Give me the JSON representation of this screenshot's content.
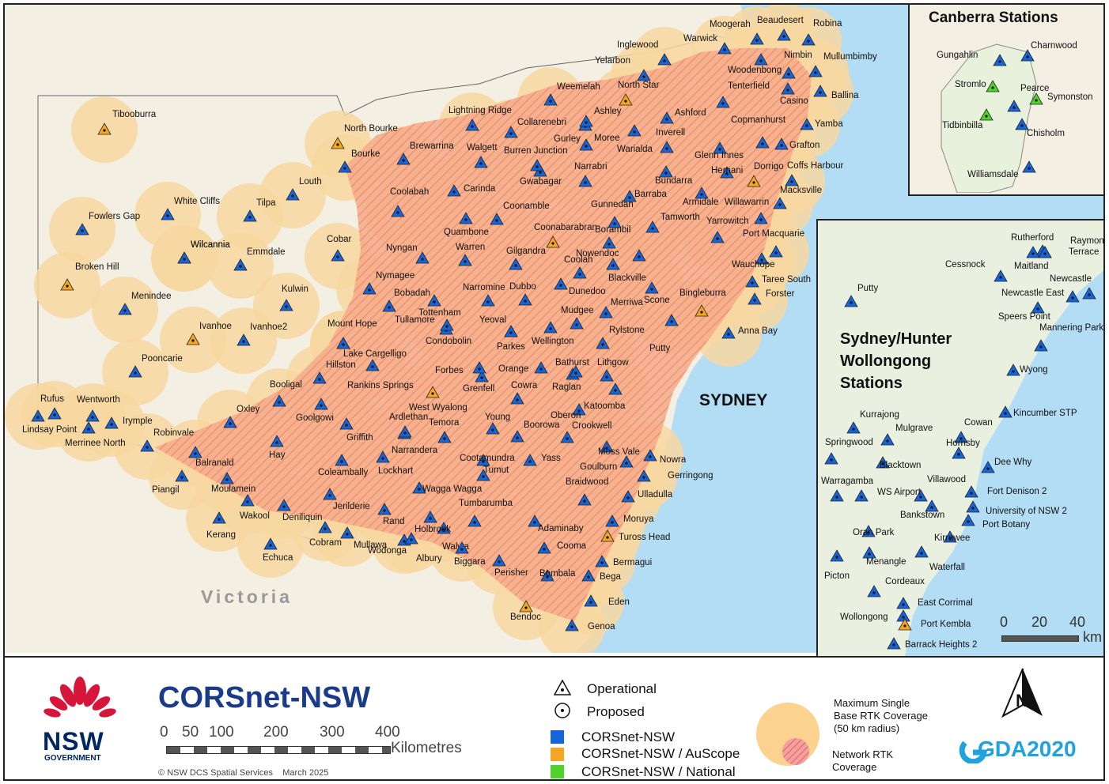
{
  "map": {
    "region_label": "Victoria",
    "city_label": "SYDNEY",
    "colors": {
      "sea": "#b3dcf5",
      "land": "#f7f3e6",
      "coverage_circle": "#f8d7a0",
      "network_rtk": "#f2a98c",
      "corsnet": "#1565d8",
      "auscope": "#f5a623",
      "national": "#4fd22a"
    },
    "stations": [
      {
        "name": "Tibooburra",
        "type": "auscope"
      },
      {
        "name": "North Bourke",
        "type": "auscope"
      },
      {
        "name": "Bourke",
        "type": "corsnet"
      },
      {
        "name": "White Cliffs",
        "type": "corsnet"
      },
      {
        "name": "Tilpa",
        "type": "corsnet"
      },
      {
        "name": "Louth",
        "type": "corsnet"
      },
      {
        "name": "Fowlers Gap",
        "type": "corsnet"
      },
      {
        "name": "Wilcannia",
        "type": "corsnet"
      },
      {
        "name": "Emmdale",
        "type": "corsnet"
      },
      {
        "name": "Cobar",
        "type": "corsnet"
      },
      {
        "name": "Broken Hill",
        "type": "auscope"
      },
      {
        "name": "Menindee",
        "type": "corsnet"
      },
      {
        "name": "Kulwin",
        "type": "corsnet"
      },
      {
        "name": "Ivanhoe",
        "type": "auscope"
      },
      {
        "name": "Ivanhoe2",
        "type": "corsnet"
      },
      {
        "name": "Pooncarie",
        "type": "corsnet"
      },
      {
        "name": "Rufus",
        "type": "corsnet"
      },
      {
        "name": "Wentworth",
        "type": "corsnet"
      },
      {
        "name": "Lindsay Point",
        "type": "corsnet"
      },
      {
        "name": "Irymple",
        "type": "corsnet"
      },
      {
        "name": "Merrinee North",
        "type": "corsnet"
      },
      {
        "name": "Robinvale",
        "type": "corsnet"
      },
      {
        "name": "Balranald",
        "type": "corsnet"
      },
      {
        "name": "Oxley",
        "type": "corsnet"
      },
      {
        "name": "Piangil",
        "type": "corsnet"
      },
      {
        "name": "Moulamein",
        "type": "corsnet"
      },
      {
        "name": "Kerang",
        "type": "corsnet"
      },
      {
        "name": "Wakool",
        "type": "corsnet"
      },
      {
        "name": "Deniliquin",
        "type": "corsnet"
      },
      {
        "name": "Echuca",
        "type": "corsnet"
      },
      {
        "name": "Cobram",
        "type": "corsnet"
      },
      {
        "name": "Mullawa",
        "type": "corsnet"
      },
      {
        "name": "Wodonga",
        "type": "corsnet"
      },
      {
        "name": "Albury",
        "type": "corsnet"
      },
      {
        "name": "Walwa",
        "type": "corsnet"
      },
      {
        "name": "Holbrook",
        "type": "corsnet"
      },
      {
        "name": "Jerilderie",
        "type": "corsnet"
      },
      {
        "name": "Rand",
        "type": "corsnet"
      },
      {
        "name": "Hay",
        "type": "corsnet"
      },
      {
        "name": "Booligal",
        "type": "corsnet"
      },
      {
        "name": "Hillston",
        "type": "corsnet"
      },
      {
        "name": "Goolgowi",
        "type": "corsnet"
      },
      {
        "name": "Griffith",
        "type": "corsnet"
      },
      {
        "name": "Coleambally",
        "type": "corsnet"
      },
      {
        "name": "Lockhart",
        "type": "corsnet"
      },
      {
        "name": "Narrandera",
        "type": "corsnet"
      },
      {
        "name": "Ardlethan",
        "type": "corsnet"
      },
      {
        "name": "Rankins Springs",
        "type": "corsnet"
      },
      {
        "name": "Lake Cargelligo",
        "type": "corsnet"
      },
      {
        "name": "Mount Hope",
        "type": "corsnet"
      },
      {
        "name": "Condobolin",
        "type": "corsnet"
      },
      {
        "name": "Nymagee",
        "type": "corsnet"
      },
      {
        "name": "Nyngan",
        "type": "corsnet"
      },
      {
        "name": "Bobadah",
        "type": "corsnet"
      },
      {
        "name": "Tottenham",
        "type": "corsnet"
      },
      {
        "name": "Tullamore",
        "type": "corsnet"
      },
      {
        "name": "West Wyalong",
        "type": "auscope"
      },
      {
        "name": "Temora",
        "type": "corsnet"
      },
      {
        "name": "Grenfell",
        "type": "corsnet"
      },
      {
        "name": "Young",
        "type": "corsnet"
      },
      {
        "name": "Forbes",
        "type": "corsnet"
      },
      {
        "name": "Parkes",
        "type": "corsnet"
      },
      {
        "name": "Yeoval",
        "type": "corsnet"
      },
      {
        "name": "Narromine",
        "type": "corsnet"
      },
      {
        "name": "Dubbo",
        "type": "corsnet"
      },
      {
        "name": "Warren",
        "type": "corsnet"
      },
      {
        "name": "Quambone",
        "type": "corsnet"
      },
      {
        "name": "Coonamble",
        "type": "corsnet"
      },
      {
        "name": "Coonabarabran",
        "type": "auscope"
      },
      {
        "name": "Gilgandra",
        "type": "corsnet"
      },
      {
        "name": "Coolah",
        "type": "corsnet"
      },
      {
        "name": "Dunedoo",
        "type": "corsnet"
      },
      {
        "name": "Mudgee",
        "type": "corsnet"
      },
      {
        "name": "Wellington",
        "type": "corsnet"
      },
      {
        "name": "Orange",
        "type": "corsnet"
      },
      {
        "name": "Bathurst",
        "type": "corsnet"
      },
      {
        "name": "Lithgow",
        "type": "corsnet"
      },
      {
        "name": "Cowra",
        "type": "corsnet"
      },
      {
        "name": "Raglan",
        "type": "corsnet"
      },
      {
        "name": "Oberon",
        "type": "corsnet"
      },
      {
        "name": "Boorowa",
        "type": "corsnet"
      },
      {
        "name": "Crookwell",
        "type": "corsnet"
      },
      {
        "name": "Katoomba",
        "type": "corsnet"
      },
      {
        "name": "Cootamundra",
        "type": "corsnet"
      },
      {
        "name": "Yass",
        "type": "corsnet"
      },
      {
        "name": "Wagga Wagga",
        "type": "corsnet"
      },
      {
        "name": "Tumut",
        "type": "corsnet"
      },
      {
        "name": "Tumbarumba",
        "type": "corsnet"
      },
      {
        "name": "Goulburn",
        "type": "corsnet"
      },
      {
        "name": "Moss Vale",
        "type": "corsnet"
      },
      {
        "name": "Braidwood",
        "type": "corsnet"
      },
      {
        "name": "Adaminaby",
        "type": "corsnet"
      },
      {
        "name": "Cooma",
        "type": "corsnet"
      },
      {
        "name": "Perisher",
        "type": "corsnet"
      },
      {
        "name": "Biggara",
        "type": "corsnet"
      },
      {
        "name": "Bombala",
        "type": "corsnet"
      },
      {
        "name": "Bendoc",
        "type": "auscope"
      },
      {
        "name": "Genoa",
        "type": "corsnet"
      },
      {
        "name": "Eden",
        "type": "corsnet"
      },
      {
        "name": "Bega",
        "type": "corsnet"
      },
      {
        "name": "Bermagui",
        "type": "corsnet"
      },
      {
        "name": "Tuross Head",
        "type": "auscope"
      },
      {
        "name": "Moruya",
        "type": "corsnet"
      },
      {
        "name": "Ulladulla",
        "type": "corsnet"
      },
      {
        "name": "Gerringong",
        "type": "corsnet"
      },
      {
        "name": "Nowra",
        "type": "corsnet"
      },
      {
        "name": "Wilcannia",
        "type": "corsnet"
      },
      {
        "name": "Merriwa",
        "type": "corsnet"
      },
      {
        "name": "Rylstone",
        "type": "corsnet"
      },
      {
        "name": "Scone",
        "type": "corsnet"
      },
      {
        "name": "Putty",
        "type": "corsnet"
      },
      {
        "name": "Bingleburra",
        "type": "auscope"
      },
      {
        "name": "Anna Bay",
        "type": "corsnet"
      },
      {
        "name": "Forster",
        "type": "corsnet"
      },
      {
        "name": "Taree South",
        "type": "corsnet"
      },
      {
        "name": "Wauchope",
        "type": "corsnet"
      },
      {
        "name": "Port Macquarie",
        "type": "corsnet"
      },
      {
        "name": "Nowendoc",
        "type": "corsnet"
      },
      {
        "name": "Borambil",
        "type": "corsnet"
      },
      {
        "name": "Blackville",
        "type": "corsnet"
      },
      {
        "name": "Gunnedah",
        "type": "corsnet"
      },
      {
        "name": "Tamworth",
        "type": "corsnet"
      },
      {
        "name": "Barraba",
        "type": "corsnet"
      },
      {
        "name": "Yarrowitch",
        "type": "corsnet"
      },
      {
        "name": "Armidale",
        "type": "corsnet"
      },
      {
        "name": "Willawarrin",
        "type": "corsnet"
      },
      {
        "name": "Macksville",
        "type": "corsnet"
      },
      {
        "name": "Coffs Harbour",
        "type": "corsnet"
      },
      {
        "name": "Dorrigo",
        "type": "auscope"
      },
      {
        "name": "Hernani",
        "type": "corsnet"
      },
      {
        "name": "Bundarra",
        "type": "corsnet"
      },
      {
        "name": "Narrabri",
        "type": "corsnet"
      },
      {
        "name": "Gwabagar",
        "type": "corsnet"
      },
      {
        "name": "Carinda",
        "type": "corsnet"
      },
      {
        "name": "Coolabah",
        "type": "corsnet"
      },
      {
        "name": "Brewarrina",
        "type": "corsnet"
      },
      {
        "name": "Walgett",
        "type": "corsnet"
      },
      {
        "name": "Burren Junction",
        "type": "corsnet"
      },
      {
        "name": "Lightning Ridge",
        "type": "corsnet"
      },
      {
        "name": "Collarenebri",
        "type": "corsnet"
      },
      {
        "name": "Weemelah",
        "type": "corsnet"
      },
      {
        "name": "Gurley",
        "type": "corsnet"
      },
      {
        "name": "Moree",
        "type": "corsnet"
      },
      {
        "name": "Ashley",
        "type": "corsnet"
      },
      {
        "name": "Warialda",
        "type": "corsnet"
      },
      {
        "name": "Inverell",
        "type": "corsnet"
      },
      {
        "name": "Ashford",
        "type": "corsnet"
      },
      {
        "name": "Glenn Innes",
        "type": "corsnet"
      },
      {
        "name": "Copmanhurst",
        "type": "corsnet"
      },
      {
        "name": "Grafton",
        "type": "corsnet"
      },
      {
        "name": "Yamba",
        "type": "corsnet"
      },
      {
        "name": "Casino",
        "type": "corsnet"
      },
      {
        "name": "Ballina",
        "type": "corsnet"
      },
      {
        "name": "Tenterfield",
        "type": "corsnet"
      },
      {
        "name": "Woodenbong",
        "type": "corsnet"
      },
      {
        "name": "Nimbin",
        "type": "corsnet"
      },
      {
        "name": "Mullumbimby",
        "type": "corsnet"
      },
      {
        "name": "Robina",
        "type": "corsnet"
      },
      {
        "name": "Beaudesert",
        "type": "corsnet"
      },
      {
        "name": "Moogerah",
        "type": "corsnet"
      },
      {
        "name": "Warwick",
        "type": "corsnet"
      },
      {
        "name": "Inglewood",
        "type": "corsnet"
      },
      {
        "name": "Yelarbon",
        "type": "corsnet"
      },
      {
        "name": "North Star",
        "type": "auscope"
      }
    ],
    "scale": {
      "ticks": [
        "0",
        "50",
        "100",
        "200",
        "300",
        "400"
      ],
      "unit": "Kilometres"
    }
  },
  "canberra_inset": {
    "title": "Canberra Stations",
    "stations": [
      {
        "name": "Gungahlin",
        "type": "corsnet"
      },
      {
        "name": "Charnwood",
        "type": "corsnet"
      },
      {
        "name": "Stromlo",
        "type": "national"
      },
      {
        "name": "Pearce",
        "type": "corsnet"
      },
      {
        "name": "Symonston",
        "type": "national"
      },
      {
        "name": "Tidbinbilla",
        "type": "national"
      },
      {
        "name": "Chisholm",
        "type": "corsnet"
      },
      {
        "name": "Williamsdale",
        "type": "corsnet"
      }
    ]
  },
  "sydney_inset": {
    "title_lines": [
      "Sydney/Hunter",
      "Wollongong",
      "Stations"
    ],
    "stations": [
      {
        "name": "Rutherford",
        "type": "corsnet"
      },
      {
        "name": "Raymond",
        "type": "corsnet"
      },
      {
        "name": "Terrace",
        "type": "corsnet"
      },
      {
        "name": "Maitland",
        "type": "corsnet"
      },
      {
        "name": "Cessnock",
        "type": "corsnet"
      },
      {
        "name": "Newcastle",
        "type": "corsnet"
      },
      {
        "name": "Newcastle East",
        "type": "corsnet"
      },
      {
        "name": "Putty",
        "type": "corsnet"
      },
      {
        "name": "Speers Point",
        "type": "corsnet"
      },
      {
        "name": "Mannering Park",
        "type": "corsnet"
      },
      {
        "name": "Wyong",
        "type": "corsnet"
      },
      {
        "name": "Kincumber STP",
        "type": "corsnet"
      },
      {
        "name": "Kurrajong",
        "type": "corsnet"
      },
      {
        "name": "Mulgrave",
        "type": "corsnet"
      },
      {
        "name": "Cowan",
        "type": "corsnet"
      },
      {
        "name": "Springwood",
        "type": "corsnet"
      },
      {
        "name": "Hornsby",
        "type": "corsnet"
      },
      {
        "name": "Blacktown",
        "type": "corsnet"
      },
      {
        "name": "Dee Why",
        "type": "corsnet"
      },
      {
        "name": "Warragamba",
        "type": "corsnet"
      },
      {
        "name": "Villawood",
        "type": "corsnet"
      },
      {
        "name": "Fort Denison 2",
        "type": "corsnet"
      },
      {
        "name": "WS Airport",
        "type": "corsnet"
      },
      {
        "name": "University of NSW 2",
        "type": "corsnet"
      },
      {
        "name": "Bankstown",
        "type": "corsnet"
      },
      {
        "name": "Port Botany",
        "type": "corsnet"
      },
      {
        "name": "Oran Park",
        "type": "corsnet"
      },
      {
        "name": "Kirrawee",
        "type": "corsnet"
      },
      {
        "name": "Menangle",
        "type": "corsnet"
      },
      {
        "name": "Waterfall",
        "type": "corsnet"
      },
      {
        "name": "Picton",
        "type": "corsnet"
      },
      {
        "name": "Cordeaux",
        "type": "corsnet"
      },
      {
        "name": "East Corrimal",
        "type": "corsnet"
      },
      {
        "name": "Wollongong",
        "type": "corsnet"
      },
      {
        "name": "Port Kembla",
        "type": "auscope"
      },
      {
        "name": "Barrack Heights 2",
        "type": "corsnet"
      }
    ],
    "scale": {
      "ticks": [
        "0",
        "20",
        "40"
      ],
      "unit": "km"
    }
  },
  "legend": {
    "title": "CORSnet-NSW",
    "logo_text": "NSW",
    "logo_subtext": "GOVERNMENT",
    "scale_ticks": [
      "0",
      "50",
      "100",
      "200",
      "300",
      "400"
    ],
    "scale_unit": "Kilometres",
    "credit": "© NSW DCS Spatial Services    March 2025",
    "symbols": [
      {
        "label": "Operational"
      },
      {
        "label": "Proposed"
      }
    ],
    "networks": [
      {
        "label": "CORSnet-NSW",
        "color": "#1565d8"
      },
      {
        "label": "CORSnet-NSW / AuScope",
        "color": "#f5a623"
      },
      {
        "label": "CORSnet-NSW / National",
        "color": "#4fd22a"
      }
    ],
    "coverage_single": "Maximum Single Base RTK Coverage (50 km radius)",
    "coverage_single_lines": [
      "Maximum Single",
      "Base RTK Coverage",
      "(50 km radius)"
    ],
    "coverage_network_lines": [
      "Network RTK",
      "Coverage"
    ],
    "north_letter": "N",
    "gda_text": "GDA2020"
  }
}
